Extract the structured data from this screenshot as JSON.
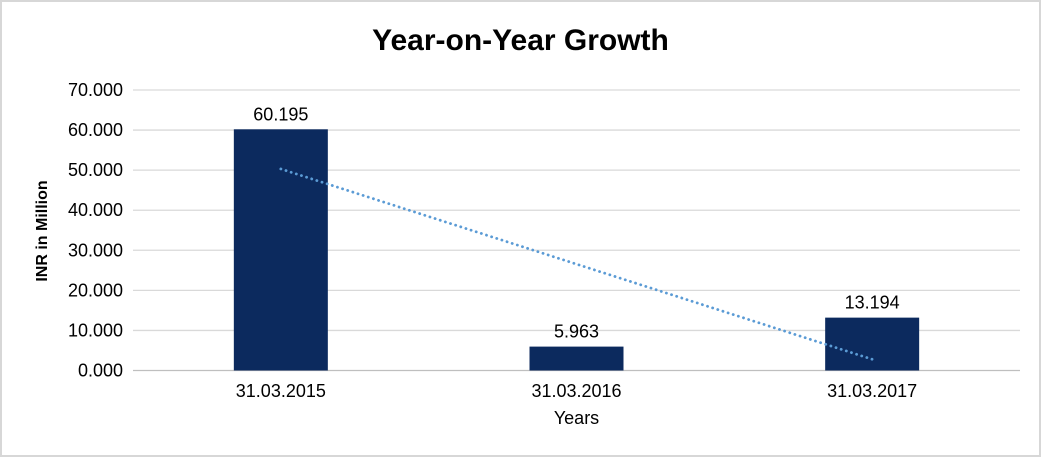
{
  "chart_data": {
    "type": "bar",
    "title": "Year-on-Year Growth",
    "categories": [
      "31.03.2015",
      "31.03.2016",
      "31.03.2017"
    ],
    "values": [
      60.195,
      5.963,
      13.194
    ],
    "value_labels": [
      "60.195",
      "5.963",
      "13.194"
    ],
    "xlabel": "Years",
    "ylabel": "INR in Million",
    "ylim": [
      0,
      70
    ],
    "ytick_step": 10,
    "ytick_labels": [
      "0.000",
      "10.000",
      "20.000",
      "30.000",
      "40.000",
      "50.000",
      "60.000",
      "70.000"
    ],
    "grid": true,
    "legend_position": "none",
    "bar_color": "#0c2a5e",
    "trendline": {
      "shape": "linear",
      "style": "dotted",
      "color": "#5b9bd5",
      "start": {
        "category_index": 0,
        "value": 50.3
      },
      "end": {
        "category_index": 2,
        "value": 2.8
      }
    },
    "colors": {
      "gridline": "#d9d9d9",
      "axis_line": "#bfbfbf",
      "text": "#000000",
      "background": "#ffffff",
      "border": "#d7d7d7"
    }
  }
}
